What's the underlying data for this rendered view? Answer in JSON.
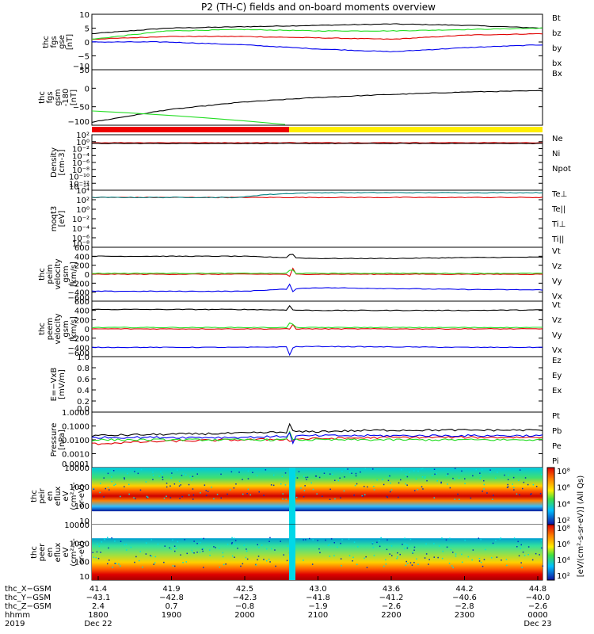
{
  "title": "P2 (TH-C) fields and on-board moments overview",
  "colors": {
    "black": "#000000",
    "red": "#e00000",
    "green": "#22dd22",
    "blue": "#0000ee",
    "yellow": "#ffee00",
    "teal": "#008080"
  },
  "panels": [
    {
      "id": "fgs",
      "ylabel": [
        "thc",
        "fgs",
        "gse",
        "[nT]"
      ],
      "ticks": [
        "10",
        "5",
        "0",
        "−5",
        "−10"
      ],
      "legend": [
        {
          "t": "Bt",
          "c": "black"
        },
        {
          "t": "bz",
          "c": "red"
        },
        {
          "t": "by",
          "c": "green"
        },
        {
          "t": "bx",
          "c": "blue"
        }
      ]
    },
    {
      "id": "fgs-gsm",
      "ylabel": [
        "thc",
        "fgs",
        "gsm",
        "-180",
        "[nT]"
      ],
      "ticks": [
        "50",
        "0",
        "−50",
        "−100"
      ],
      "legend": [
        {
          "t": "Bx",
          "c": "black"
        }
      ]
    },
    {
      "id": "density",
      "ylabel": [
        "Density",
        "[cm-3]"
      ],
      "ticks": [
        "10²",
        "10⁰",
        "10⁻²",
        "10⁻⁴",
        "10⁻⁶",
        "10⁻⁸",
        "10⁻¹⁰",
        "10⁻¹²",
        "10⁻¹⁴"
      ],
      "legend": [
        {
          "t": "Ne",
          "c": "red"
        },
        {
          "t": "Ni",
          "c": "black"
        },
        {
          "t": "Npot",
          "c": "blue"
        }
      ]
    },
    {
      "id": "temp",
      "ylabel": [
        "moqt3",
        "[eV]"
      ],
      "ticks": [
        "10⁴",
        "10²",
        "10⁰",
        "10⁻²",
        "10⁻⁴",
        "10⁻⁶",
        "10⁻⁸"
      ],
      "legend": [
        {
          "t": "Te⊥",
          "c": "red"
        },
        {
          "t": "Te||",
          "c": "black"
        },
        {
          "t": "Ti⊥",
          "c": "blue"
        },
        {
          "t": "Ti||",
          "c": "green"
        }
      ]
    },
    {
      "id": "vel-i",
      "ylabel": [
        "thc",
        "peim",
        "velocity",
        "gsm",
        "[km/s]"
      ],
      "ticks": [
        "600",
        "400",
        "200",
        "0",
        "−200",
        "−400",
        "−600"
      ],
      "legend": [
        {
          "t": "Vt",
          "c": "black"
        },
        {
          "t": "Vz",
          "c": "red"
        },
        {
          "t": "Vy",
          "c": "green"
        },
        {
          "t": "Vx",
          "c": "blue"
        }
      ]
    },
    {
      "id": "vel-e",
      "ylabel": [
        "thc",
        "peem",
        "velocity",
        "gsm",
        "[km/s]"
      ],
      "ticks": [
        "600",
        "400",
        "200",
        "0",
        "−200",
        "−400",
        "−600"
      ],
      "legend": [
        {
          "t": "Vt",
          "c": "black"
        },
        {
          "t": "Vz",
          "c": "red"
        },
        {
          "t": "Vy",
          "c": "green"
        },
        {
          "t": "Vx",
          "c": "blue"
        }
      ]
    },
    {
      "id": "efield",
      "ylabel": [
        "E=−VxB",
        "[mV/m]"
      ],
      "ticks": [
        "1.0",
        "0.8",
        "0.6",
        "0.4",
        "0.2",
        "0.0"
      ],
      "legend": [
        {
          "t": "Ez",
          "c": "red"
        },
        {
          "t": "Ey",
          "c": "green"
        },
        {
          "t": "Ex",
          "c": "blue"
        }
      ]
    },
    {
      "id": "pressure",
      "ylabel": [
        "Pressure",
        "[nPa]"
      ],
      "ticks": [
        "1.0000",
        "0.1000",
        "0.0100",
        "0.0010",
        "0.0001"
      ],
      "legend": [
        {
          "t": "Pt",
          "c": "black"
        },
        {
          "t": "Pb",
          "c": "red"
        },
        {
          "t": "Pe",
          "c": "green"
        },
        {
          "t": "Pi",
          "c": "blue"
        }
      ]
    },
    {
      "id": "peir",
      "ylabel": [
        "thc",
        "peir",
        "en",
        "eflux",
        "eV",
        "(cm²-s-",
        "sr-eV)"
      ],
      "ticks": [
        "10000",
        "1000",
        "100",
        "10"
      ],
      "legend": []
    },
    {
      "id": "peer",
      "ylabel": [
        "thc",
        "peer",
        "en",
        "eflux",
        "eV",
        "(cm²-s-",
        "sr-eV)"
      ],
      "ticks": [
        "10000",
        "1000",
        "100",
        "10"
      ],
      "legend": []
    }
  ],
  "colorbar": {
    "ticks": [
      "10⁸",
      "10⁶",
      "10⁴",
      "10²",
      "10⁸",
      "10⁶",
      "10⁴",
      "10²"
    ],
    "label": "[eV/(cm²-s-sr-eV)] (All Qs)"
  },
  "xaxis": {
    "rows": [
      {
        "label": "thc_X−GSM",
        "values": [
          "41.4",
          "41.9",
          "42.5",
          "43.0",
          "43.6",
          "44.2",
          "44.8"
        ]
      },
      {
        "label": "thc_Y−GSM",
        "values": [
          "−43.1",
          "−42.8",
          "−42.3",
          "−41.8",
          "−41.2",
          "−40.6",
          "−40.0"
        ]
      },
      {
        "label": "thc_Z−GSM",
        "values": [
          "2.4",
          "0.7",
          "−0.8",
          "−1.9",
          "−2.6",
          "−2.8",
          "−2.6"
        ]
      },
      {
        "label": "hhmm",
        "values": [
          "1800",
          "1900",
          "2000",
          "2100",
          "2200",
          "2300",
          "0000"
        ]
      }
    ],
    "year": "2019",
    "dates": [
      {
        "text": "Dec 22",
        "i": 0
      },
      {
        "text": "Dec 23",
        "i": 6
      }
    ]
  },
  "chart_data": {
    "type": "line",
    "time_hhmm": [
      "1800",
      "1900",
      "2000",
      "2100",
      "2200",
      "2300",
      "0000"
    ],
    "panels": [
      {
        "name": "fgs gse",
        "series": [
          {
            "name": "Bt",
            "values": [
              3,
              5,
              5.5,
              6,
              6.5,
              6,
              5
            ]
          },
          {
            "name": "bz",
            "values": [
              1,
              2,
              2,
              1.5,
              1,
              2.5,
              3
            ]
          },
          {
            "name": "by",
            "values": [
              1,
              4,
              4.5,
              4,
              4,
              4.5,
              5
            ]
          },
          {
            "name": "bx",
            "values": [
              0,
              0,
              -1,
              -2.5,
              -3.5,
              -2,
              -1
            ]
          }
        ],
        "ylim": [
          -10,
          10
        ]
      },
      {
        "name": "fgs gsm -180",
        "series": [
          {
            "name": "Bx",
            "values": [
              -110,
              -70,
              -45,
              -30,
              -20,
              -12,
              -8
            ]
          }
        ],
        "ylim": [
          -120,
          60
        ]
      },
      {
        "name": "Density",
        "series": [
          {
            "name": "Ne",
            "values": [
              0.5,
              0.5,
              0.5,
              0.5,
              0.5,
              0.5,
              0.5
            ]
          },
          {
            "name": "Ni",
            "values": [
              0.3,
              0.3,
              0.3,
              0.3,
              0.3,
              0.3,
              0.3
            ]
          }
        ],
        "log": true,
        "ylim": [
          1e-14,
          100
        ]
      },
      {
        "name": "moqt3",
        "series": [
          {
            "name": "Te⊥",
            "values": [
              300,
              300,
              300,
              300,
              300,
              300,
              300
            ]
          },
          {
            "name": "Ti||",
            "values": [
              300,
              300,
              300,
              3000,
              3000,
              3000,
              3000
            ]
          }
        ],
        "log": true,
        "ylim": [
          1e-08,
          10000.0
        ]
      },
      {
        "name": "peim velocity gsm",
        "series": [
          {
            "name": "Vt",
            "values": [
              400,
              400,
              400,
              350,
              350,
              370,
              380
            ]
          },
          {
            "name": "Vz",
            "values": [
              0,
              0,
              0,
              0,
              0,
              0,
              0
            ]
          },
          {
            "name": "Vy",
            "values": [
              20,
              20,
              20,
              20,
              20,
              20,
              20
            ]
          },
          {
            "name": "Vx",
            "values": [
              -380,
              -380,
              -380,
              -300,
              -320,
              -340,
              -350
            ]
          }
        ],
        "ylim": [
          -600,
          600
        ]
      },
      {
        "name": "peem velocity gsm",
        "series": [
          {
            "name": "Vt",
            "values": [
              420,
              420,
              420,
              400,
              400,
              400,
              410
            ]
          },
          {
            "name": "Vz",
            "values": [
              0,
              0,
              0,
              0,
              0,
              0,
              0
            ]
          },
          {
            "name": "Vy",
            "values": [
              30,
              30,
              30,
              30,
              30,
              30,
              30
            ]
          },
          {
            "name": "Vx",
            "values": [
              -400,
              -400,
              -400,
              -380,
              -390,
              -400,
              -400
            ]
          }
        ],
        "ylim": [
          -600,
          600
        ]
      },
      {
        "name": "Pressure",
        "series": [
          {
            "name": "Pt",
            "values": [
              0.02,
              0.025,
              0.03,
              0.04,
              0.05,
              0.05,
              0.05
            ]
          },
          {
            "name": "Pb",
            "values": [
              0.005,
              0.008,
              0.01,
              0.012,
              0.015,
              0.015,
              0.015
            ]
          },
          {
            "name": "Pe",
            "values": [
              0.01,
              0.01,
              0.01,
              0.01,
              0.01,
              0.01,
              0.01
            ]
          },
          {
            "name": "Pi",
            "values": [
              0.015,
              0.015,
              0.015,
              0.02,
              0.02,
              0.02,
              0.02
            ]
          }
        ],
        "log": true,
        "ylim": [
          0.0001,
          1
        ]
      }
    ]
  }
}
